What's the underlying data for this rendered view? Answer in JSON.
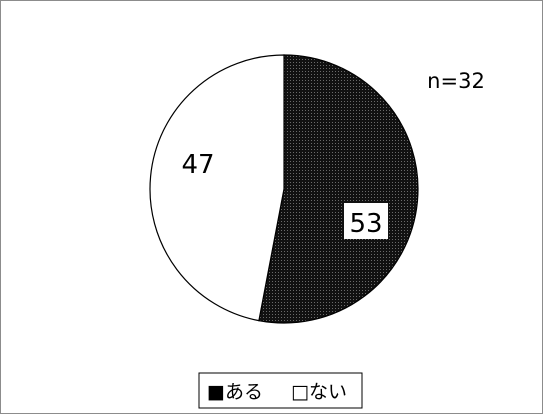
{
  "chart_data": {
    "type": "pie",
    "title": "",
    "categories": [
      "ある",
      "ない"
    ],
    "values": [
      53,
      47
    ],
    "labels": [
      "53",
      "47"
    ],
    "note": "n=32",
    "legend": {
      "position": "bottom",
      "entries": [
        {
          "marker": "■",
          "label": "ある"
        },
        {
          "marker": "□",
          "label": "ない"
        }
      ]
    },
    "colors": {
      "ある": "#1a1a1a",
      "ない": "#ffffff",
      "outline": "#000000",
      "frame": "#8c8c8c"
    },
    "slice_fill": {
      "ある": "dotted-dark",
      "ない": "solid-white"
    },
    "start_angle_deg": 0,
    "direction": "clockwise"
  }
}
